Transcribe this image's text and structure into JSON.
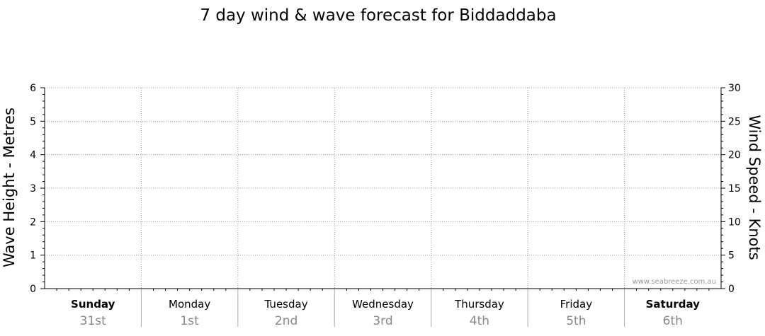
{
  "chart_data": {
    "type": "line",
    "title": "7 day wind & wave forecast for Biddaddaba",
    "ylabel": "Wave Height - Metres",
    "y2label": "Wind Speed - Knots",
    "ylim": [
      0,
      6
    ],
    "y2lim": [
      0,
      30
    ],
    "yticks": [
      "0",
      "1",
      "2",
      "3",
      "4",
      "5",
      "6"
    ],
    "y2ticks": [
      "0",
      "5",
      "10",
      "15",
      "20",
      "25",
      "30"
    ],
    "days": [
      {
        "name": "Sunday",
        "date": "31st",
        "bold": true
      },
      {
        "name": "Monday",
        "date": "1st",
        "bold": false
      },
      {
        "name": "Tuesday",
        "date": "2nd",
        "bold": false
      },
      {
        "name": "Wednesday",
        "date": "3rd",
        "bold": false
      },
      {
        "name": "Thursday",
        "date": "4th",
        "bold": false
      },
      {
        "name": "Friday",
        "date": "5th",
        "bold": false
      },
      {
        "name": "Saturday",
        "date": "6th",
        "bold": true
      }
    ],
    "series": [],
    "grid": true,
    "watermark": "www.seabreeze.com.au"
  }
}
